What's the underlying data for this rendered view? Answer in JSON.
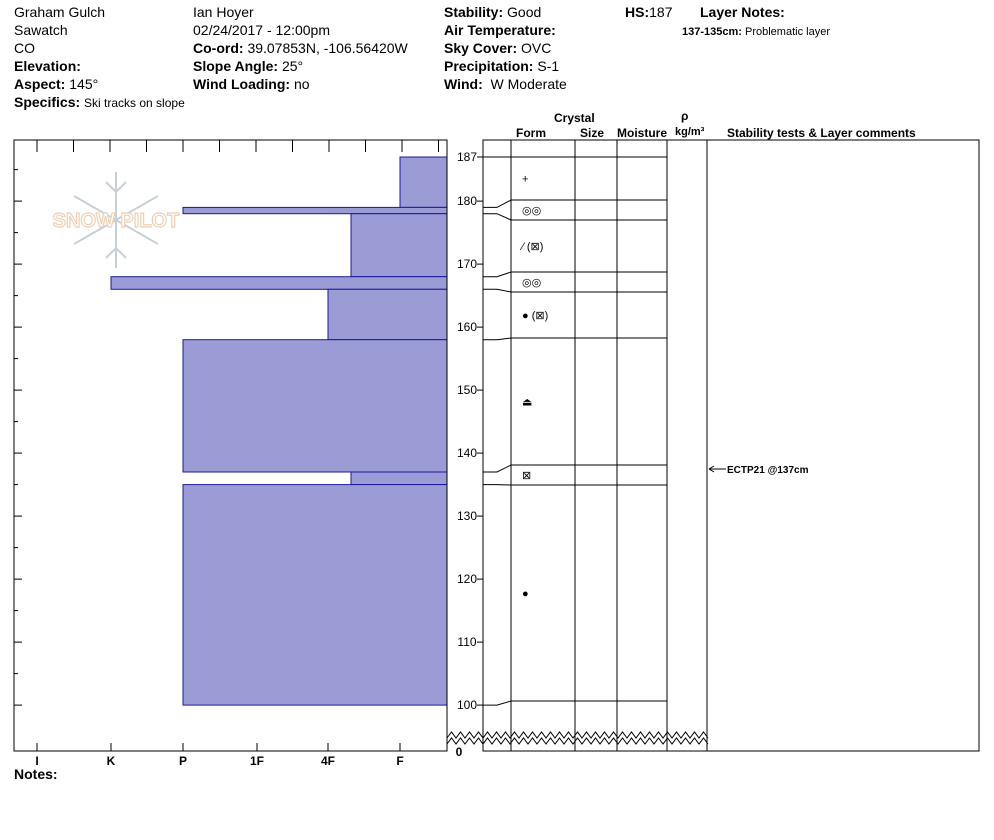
{
  "header": {
    "location": "Graham Gulch",
    "range": "Sawatch",
    "state": "CO",
    "observer": "Ian Hoyer",
    "datetime": "02/24/2017 - 12:00pm",
    "elevation_label": "Elevation:",
    "aspect_label": "Aspect:",
    "aspect_value": "145°",
    "specifics_label": "Specifics:",
    "specifics_value": "Ski tracks on slope",
    "coord_label": "Co-ord:",
    "coord_value": "39.07853N, -106.56420W",
    "slope_label": "Slope Angle:",
    "slope_value": "25°",
    "wind_loading_label": "Wind Loading:",
    "wind_loading_value": "no",
    "stability_label": "Stability:",
    "stability_value": "Good",
    "air_temp_label": "Air Temperature:",
    "sky_label": "Sky Cover:",
    "sky_value": "OVC",
    "precip_label": "Precipitation:",
    "precip_value": "S-1",
    "wind_label": "Wind:",
    "wind_value": "W Moderate",
    "hs_label": "HS:",
    "hs_value": "187",
    "layer_notes_label": "Layer Notes:",
    "layer_note_range": "137-135cm:",
    "layer_note_text": "Problematic layer"
  },
  "logo_text": "SNOW PILOT",
  "columns": {
    "crystal": "Crystal",
    "form": "Form",
    "size": "Size",
    "moisture": "Moisture",
    "rho": "ρ",
    "density_unit": "kg/m³",
    "stability": "Stability tests & Layer comments"
  },
  "notes_label": "Notes:",
  "chart_data": {
    "type": "bar",
    "orientation": "horizontal",
    "hardness_scale": [
      "I",
      "K",
      "P",
      "1F",
      "4F",
      "F"
    ],
    "depth_axis_ticks": [
      100,
      110,
      120,
      130,
      140,
      150,
      160,
      170,
      180,
      187
    ],
    "depth_axis_break_label": "0",
    "ylim": [
      100,
      187
    ],
    "layers": [
      {
        "top": 187,
        "bottom": 179,
        "hardness": "F",
        "form": "+"
      },
      {
        "top": 179,
        "bottom": 178,
        "hardness": "P",
        "form": "◎◎"
      },
      {
        "top": 178,
        "bottom": 168,
        "hardness": "4F+",
        "form": "∕ (⊠)"
      },
      {
        "top": 168,
        "bottom": 166,
        "hardness": "K",
        "form": "◎◎"
      },
      {
        "top": 166,
        "bottom": 158,
        "hardness": "4F",
        "form": "● (⊠)"
      },
      {
        "top": 158,
        "bottom": 137,
        "hardness": "P",
        "form": "⏏"
      },
      {
        "top": 137,
        "bottom": 135,
        "hardness": "4F+",
        "form": "⊠"
      },
      {
        "top": 135,
        "bottom": 100,
        "hardness": "P",
        "form": "●"
      }
    ],
    "stability_tests": [
      {
        "depth": 137,
        "label": "ECTP21 @137cm"
      }
    ]
  }
}
